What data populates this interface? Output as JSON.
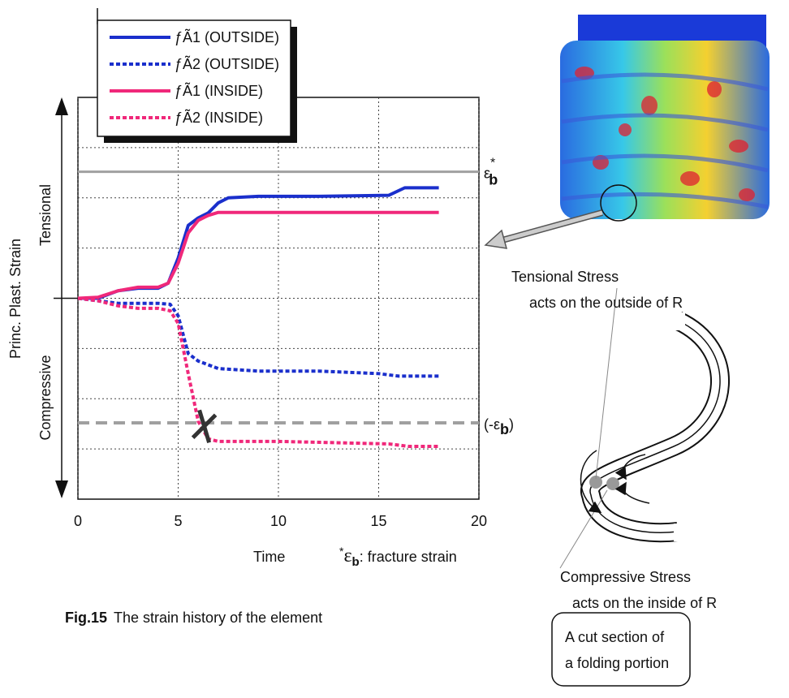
{
  "chart_data": {
    "type": "line",
    "xlabel": "Time",
    "xlim": [
      0,
      20
    ],
    "xticks": [
      0,
      5,
      10,
      15,
      20
    ],
    "ylim": [
      -4,
      4
    ],
    "yticks": [
      -3,
      -2,
      -1,
      0,
      1,
      2,
      3
    ],
    "grid": true,
    "ylabel": "Princ. Plast. Strain",
    "y_positive_label": "Tensional",
    "y_negative_label": "Compressive",
    "series": [
      {
        "name": "ƒÃ1 (OUTSIDE)",
        "color": "#1a2fcc",
        "dashed": false,
        "x": [
          0,
          1,
          2,
          3,
          4,
          4.5,
          5,
          5.5,
          6,
          6.5,
          7,
          7.5,
          9,
          12,
          15.5,
          16.3,
          18
        ],
        "values": [
          0,
          0,
          0.15,
          0.2,
          0.2,
          0.3,
          0.8,
          1.45,
          1.6,
          1.7,
          1.9,
          2.0,
          2.03,
          2.03,
          2.05,
          2.2,
          2.2
        ]
      },
      {
        "name": "ƒÃ2 (OUTSIDE)",
        "color": "#1a2fcc",
        "dashed": true,
        "x": [
          0,
          1,
          2,
          3,
          4,
          4.6,
          5,
          5.5,
          6,
          7,
          9,
          12,
          15,
          16,
          18
        ],
        "values": [
          0,
          -0.05,
          -0.1,
          -0.1,
          -0.1,
          -0.12,
          -0.35,
          -1.1,
          -1.25,
          -1.4,
          -1.45,
          -1.45,
          -1.5,
          -1.55,
          -1.55
        ]
      },
      {
        "name": "ƒÃ1 (INSIDE)",
        "color": "#f0287a",
        "dashed": false,
        "x": [
          0,
          1,
          2,
          3,
          4,
          4.5,
          5,
          5.5,
          6,
          6.5,
          7,
          10,
          18
        ],
        "values": [
          0,
          0.02,
          0.15,
          0.22,
          0.22,
          0.3,
          0.7,
          1.3,
          1.55,
          1.65,
          1.71,
          1.71,
          1.71
        ]
      },
      {
        "name": "ƒÃ2 (INSIDE)",
        "color": "#f0287a",
        "dashed": true,
        "x": [
          0,
          1,
          2,
          3,
          4,
          4.6,
          5,
          5.5,
          6,
          6.5,
          7,
          10,
          15.5,
          16.5,
          18
        ],
        "values": [
          0,
          -0.05,
          -0.15,
          -0.2,
          -0.2,
          -0.25,
          -0.5,
          -1.5,
          -2.45,
          -2.8,
          -2.85,
          -2.85,
          -2.9,
          -2.95,
          -2.95
        ]
      }
    ],
    "reference_lines": [
      {
        "value": 2.52,
        "color": "#a0a0a0",
        "dashed": false,
        "prefix": "ε",
        "subscript": "b",
        "superscript": "*",
        "suffix": ""
      },
      {
        "value": -2.48,
        "color": "#a0a0a0",
        "dashed": true,
        "prefix": "(-ε",
        "subscript": "b",
        "superscript": "",
        "suffix": ")"
      }
    ],
    "fracture_point": {
      "x": 6.3,
      "y": -2.55
    },
    "footnote": {
      "superscript": "*",
      "symbol": "ε",
      "subscript": "b",
      "text": ": fracture strain"
    }
  },
  "caption": {
    "label": "Fig.15",
    "text": "The strain history of the element"
  },
  "diagram": {
    "tensional": [
      "Tensional Stress",
      "acts on the outside of R"
    ],
    "compressive": [
      "Compressive Stress",
      "acts on the inside of R"
    ],
    "box": [
      "A cut section of",
      "a folding portion"
    ]
  }
}
